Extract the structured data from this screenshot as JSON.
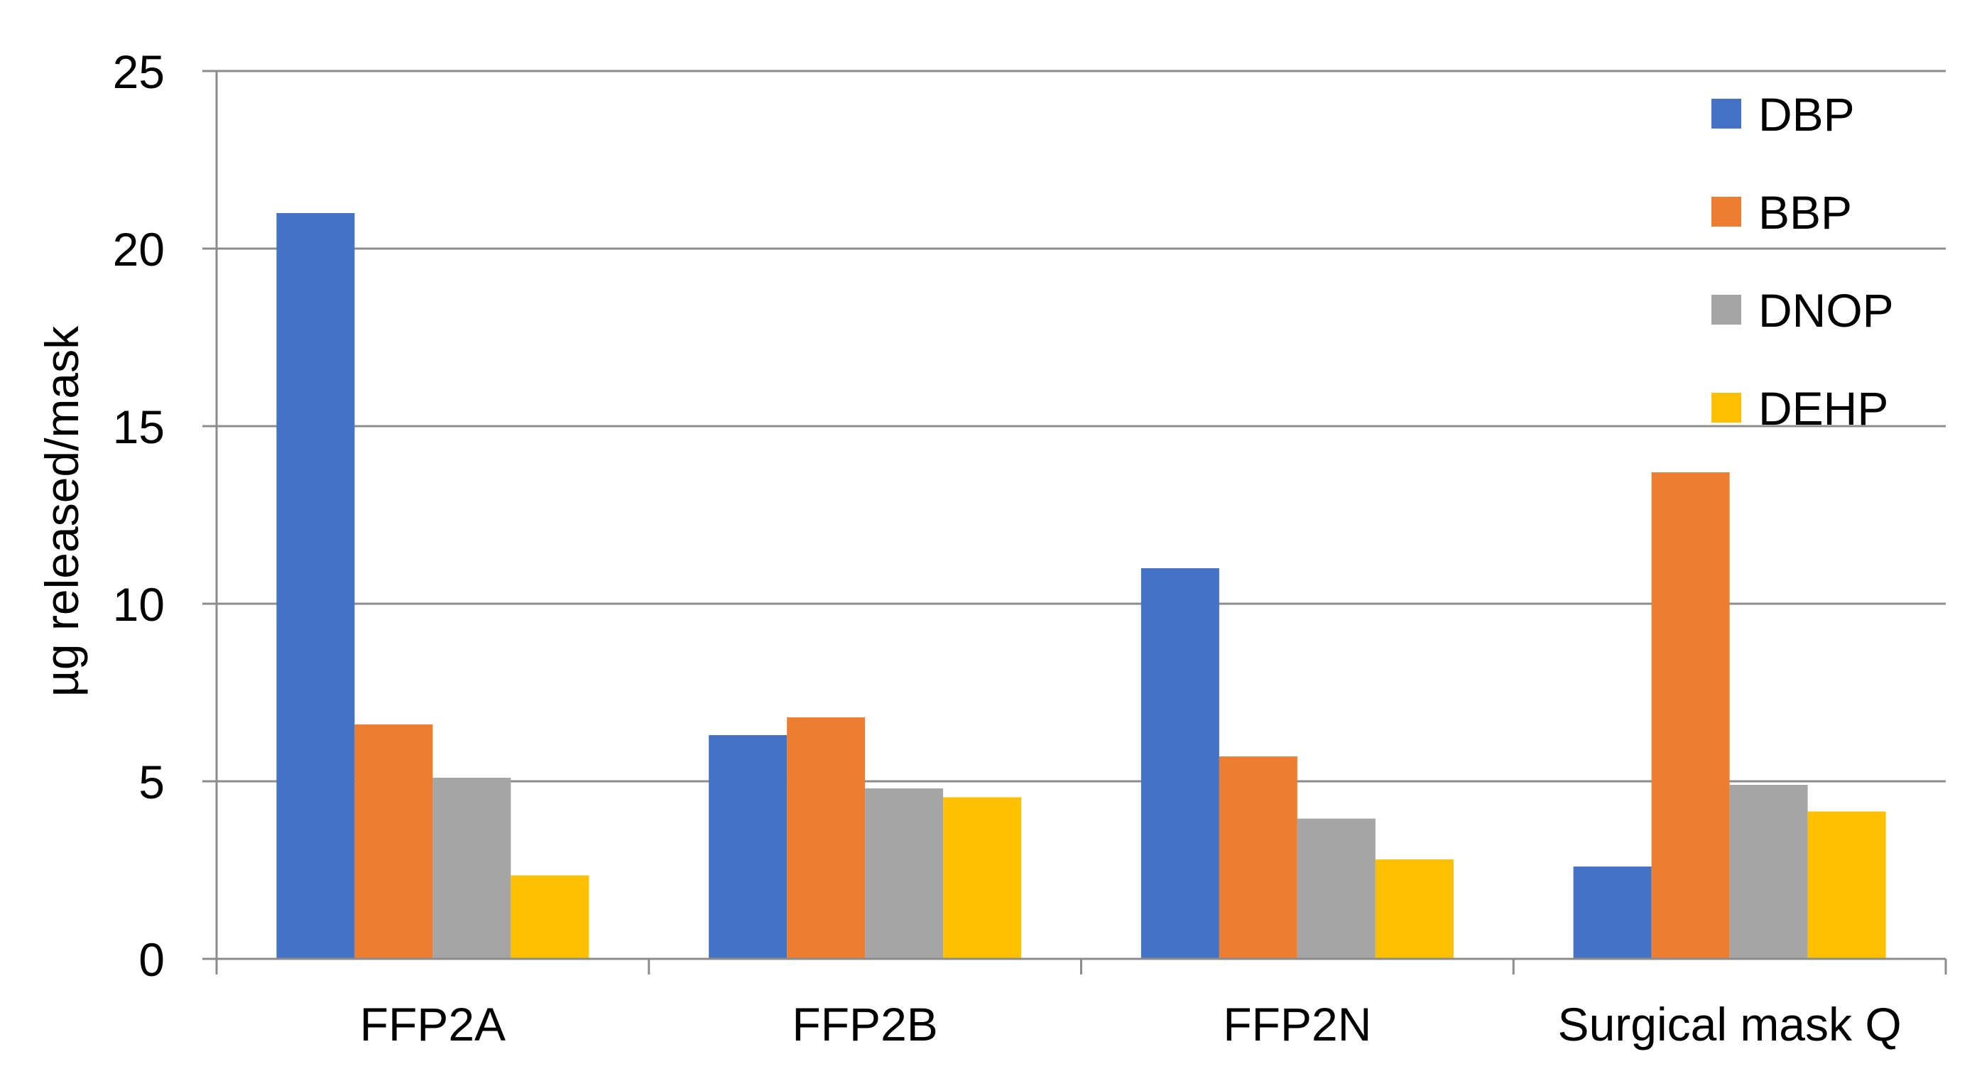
{
  "chart_data": {
    "type": "bar",
    "title": "",
    "xlabel": "",
    "ylabel": "µg released/mask",
    "categories": [
      "FFP2A",
      "FFP2B",
      "FFP2N",
      "Surgical mask Q"
    ],
    "series": [
      {
        "name": "DBP",
        "color": "#4472C4",
        "values": [
          21.0,
          6.3,
          11.0,
          2.6
        ]
      },
      {
        "name": "BBP",
        "color": "#ED7D31",
        "values": [
          6.6,
          6.8,
          5.7,
          13.7
        ]
      },
      {
        "name": "DNOP",
        "color": "#A5A5A5",
        "values": [
          5.1,
          4.8,
          3.95,
          4.9
        ]
      },
      {
        "name": "DEHP",
        "color": "#FFC000",
        "values": [
          2.35,
          4.55,
          2.8,
          4.15
        ]
      }
    ],
    "ylim": [
      0,
      25
    ],
    "yticks": [
      0,
      5,
      10,
      15,
      20,
      25
    ],
    "grid": true,
    "legend_position": "top-right"
  }
}
